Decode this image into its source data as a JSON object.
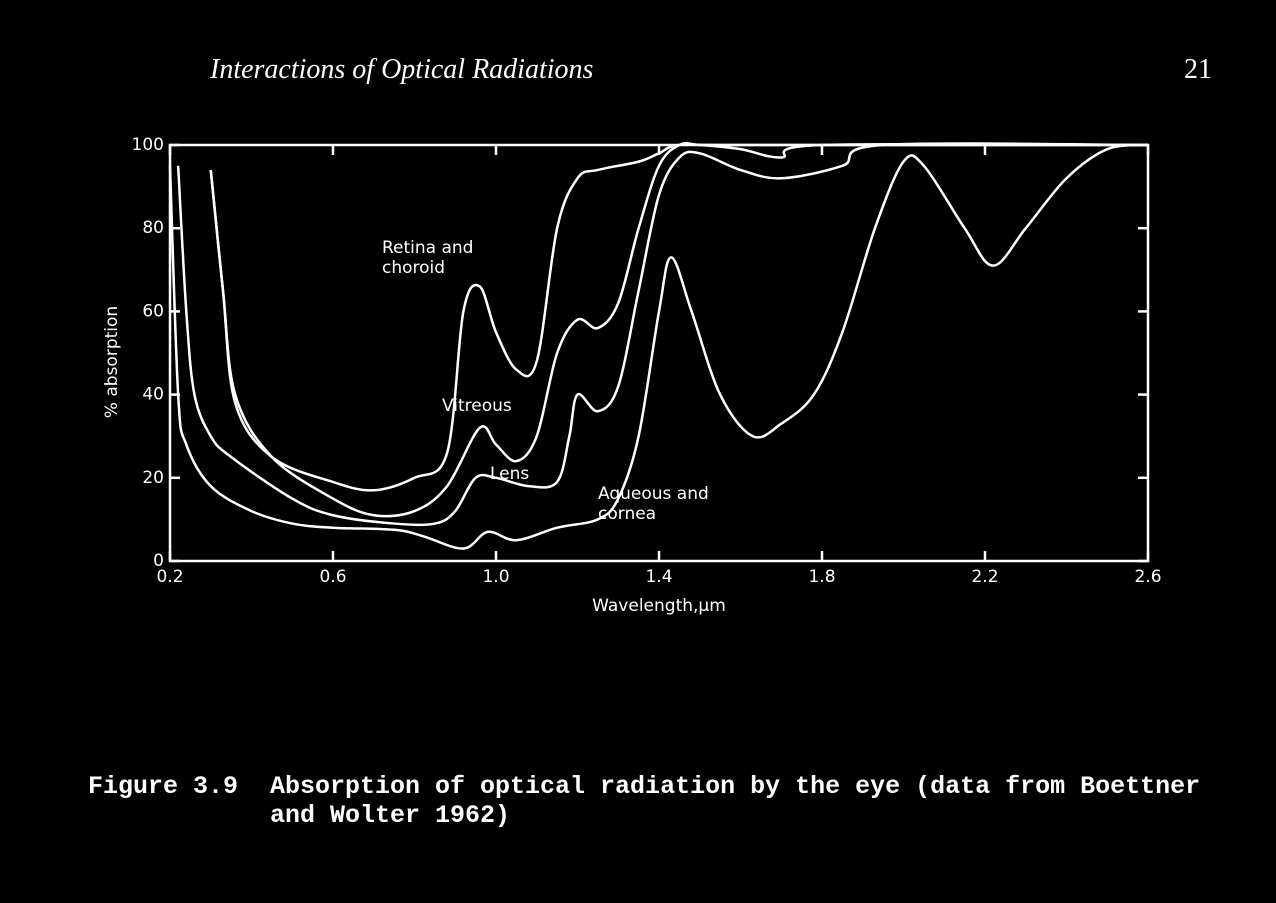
{
  "header": {
    "title": "Interactions of Optical Radiations",
    "page": "21"
  },
  "chart_data": {
    "type": "line",
    "x_label": "Wavelength,μm",
    "y_label": "% absorption",
    "xlim": [
      0.2,
      2.6
    ],
    "ylim": [
      0,
      100
    ],
    "xticks": [
      0.2,
      0.6,
      {
        "value": 1,
        "label": "1.0"
      },
      1.4,
      1.8,
      2.2,
      2.6
    ],
    "yticks": [
      0,
      20,
      40,
      60,
      80,
      100
    ],
    "color": "#ffffff",
    "series": [
      {
        "name": "Retina and choroid",
        "x": [
          0.3,
          0.33,
          0.36,
          0.45,
          0.6,
          0.7,
          0.8,
          0.88,
          0.92,
          0.96,
          1.0,
          1.05,
          1.1,
          1.15,
          1.2,
          1.25,
          1.35,
          1.4,
          1.45,
          1.6,
          2.6
        ],
        "values": [
          94,
          65,
          38,
          25,
          19,
          17,
          20,
          26,
          60,
          66,
          55,
          46,
          48,
          80,
          92,
          94,
          96,
          98,
          100,
          100,
          100
        ]
      },
      {
        "name": "Vitreous",
        "x": [
          0.3,
          0.33,
          0.36,
          0.45,
          0.6,
          0.7,
          0.8,
          0.88,
          0.96,
          1.0,
          1.05,
          1.1,
          1.15,
          1.2,
          1.25,
          1.3,
          1.35,
          1.4,
          1.45,
          1.5,
          1.6,
          1.7,
          1.8,
          2.6
        ],
        "values": [
          94,
          65,
          40,
          25,
          15,
          11,
          12,
          18,
          32,
          28,
          24,
          30,
          50,
          58,
          56,
          62,
          80,
          95,
          100,
          100,
          99,
          97,
          100,
          100
        ]
      },
      {
        "name": "Lens",
        "x": [
          0.22,
          0.24,
          0.26,
          0.3,
          0.35,
          0.5,
          0.6,
          0.75,
          0.85,
          0.9,
          0.95,
          1.0,
          1.08,
          1.15,
          1.18,
          1.2,
          1.25,
          1.3,
          1.35,
          1.4,
          1.45,
          1.5,
          1.6,
          1.7,
          1.85,
          1.95,
          2.6
        ],
        "values": [
          95,
          60,
          40,
          30,
          25,
          15,
          11,
          9,
          9,
          12,
          20,
          20,
          18,
          19,
          30,
          40,
          36,
          42,
          65,
          88,
          97,
          98,
          94,
          92,
          95,
          100,
          100
        ]
      },
      {
        "name": "Aqueous and cornea",
        "x": [
          0.2,
          0.22,
          0.24,
          0.3,
          0.4,
          0.5,
          0.6,
          0.75,
          0.82,
          0.92,
          0.98,
          1.05,
          1.15,
          1.25,
          1.3,
          1.35,
          1.4,
          1.43,
          1.48,
          1.55,
          1.63,
          1.7,
          1.78,
          1.85,
          1.93,
          2.0,
          2.05,
          2.15,
          2.22,
          2.3,
          2.4,
          2.5,
          2.6
        ],
        "values": [
          95,
          40,
          28,
          18,
          12,
          9,
          8,
          7.5,
          6,
          3,
          7,
          5,
          8,
          10,
          15,
          30,
          60,
          73,
          60,
          40,
          30,
          33,
          40,
          55,
          80,
          96,
          95,
          80,
          71,
          80,
          92,
          99,
          100
        ]
      }
    ]
  },
  "caption": {
    "label": "Figure 3.9",
    "text": "Absorption of optical radiation by the eye (data from Boettner and Wolter 1962)"
  }
}
